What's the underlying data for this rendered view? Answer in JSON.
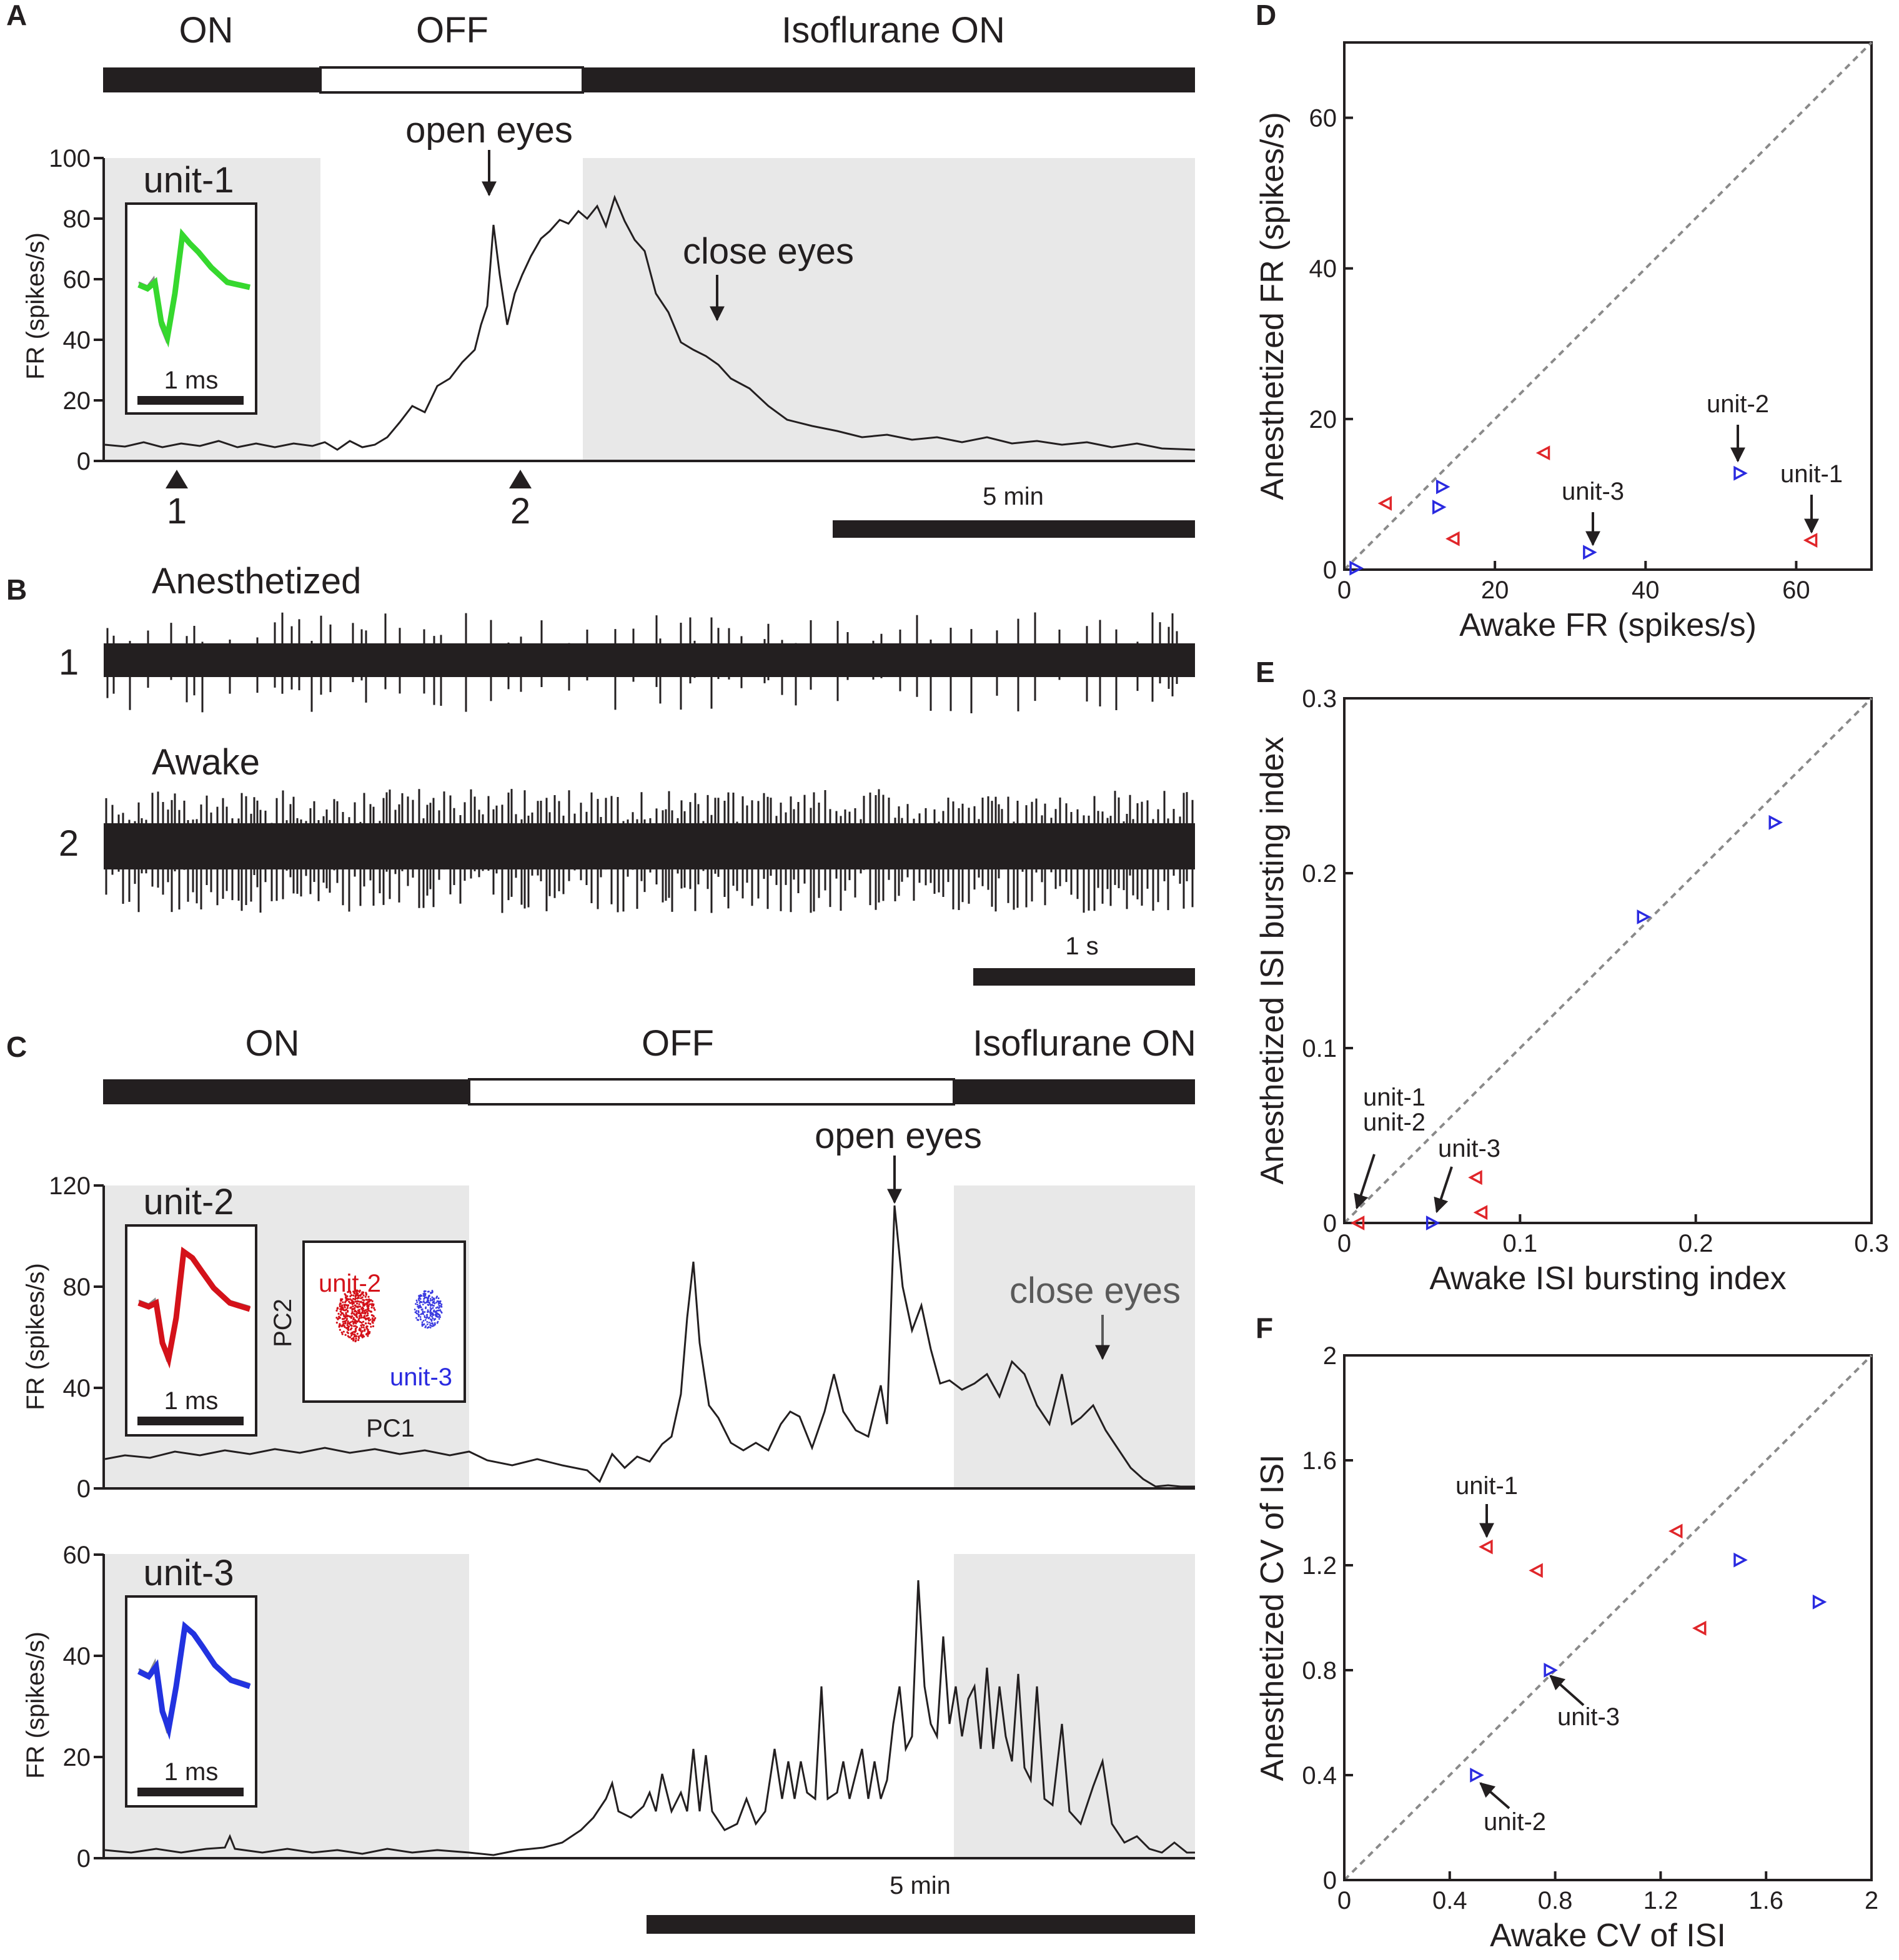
{
  "panels": {
    "A": {
      "letter": "A",
      "states": [
        "ON",
        "OFF",
        "Isoflurane ON"
      ],
      "ylabel": "FR (spikes/s)",
      "yticks": [
        "0",
        "20",
        "40",
        "60",
        "80",
        "100"
      ],
      "ylim": [
        0,
        100
      ],
      "annotations": {
        "open": "open eyes",
        "close": "close eyes"
      },
      "inset": {
        "unit": "unit-1",
        "scale": "1 ms",
        "color": "#36d82e"
      },
      "markers": [
        "1",
        "2"
      ],
      "scalebar": "5 min"
    },
    "B": {
      "letter": "B",
      "traces": [
        {
          "label": "Anesthetized",
          "index": "1"
        },
        {
          "label": "Awake",
          "index": "2"
        }
      ],
      "scalebar": "1 s"
    },
    "C": {
      "letter": "C",
      "states": [
        "ON",
        "OFF",
        "Isoflurane ON"
      ],
      "top": {
        "ylabel": "FR (spikes/s)",
        "yticks": [
          "0",
          "40",
          "80",
          "120"
        ],
        "ylim": [
          0,
          120
        ],
        "annotations": {
          "open": "open eyes",
          "close": "close eyes"
        },
        "inset": {
          "unit": "unit-2",
          "scale": "1 ms",
          "color": "#d4121a"
        },
        "pca": {
          "xlabel": "PC1",
          "ylabel": "PC2",
          "label_a": "unit-2",
          "label_b": "unit-3"
        }
      },
      "bottom": {
        "ylabel": "FR (spikes/s)",
        "yticks": [
          "0",
          "20",
          "40",
          "60"
        ],
        "ylim": [
          0,
          60
        ],
        "inset": {
          "unit": "unit-3",
          "scale": "1 ms",
          "color": "#2233e0"
        }
      },
      "scalebar": "5 min"
    }
  },
  "colors": {
    "red": "#e0262a",
    "blue": "#2a2ae0",
    "shade": "#e8e8e8",
    "ink": "#231f20"
  },
  "chart_data": [
    {
      "type": "scatter",
      "panel": "D",
      "xlabel": "Awake FR  (spikes/s)",
      "ylabel": "Anesthetized FR  (spikes/s)",
      "xlim": [
        0,
        70
      ],
      "ylim": [
        0,
        70
      ],
      "xticks": [
        "0",
        "20",
        "40",
        "60"
      ],
      "yticks": [
        "0",
        "20",
        "40",
        "60"
      ],
      "series": [
        {
          "name": "red",
          "marker": "left-triangle",
          "points": [
            [
              5.5,
              8.8
            ],
            [
              14.5,
              4.1
            ],
            [
              26.5,
              15.5
            ],
            [
              62,
              3.9
            ]
          ]
        },
        {
          "name": "blue",
          "marker": "right-triangle",
          "points": [
            [
              1.5,
              0.2
            ],
            [
              12.5,
              8.3
            ],
            [
              13.0,
              11.0
            ],
            [
              32.5,
              2.3
            ],
            [
              52.5,
              12.8
            ]
          ]
        }
      ],
      "annotations": [
        {
          "text": "unit-2",
          "x": 52.5,
          "y": 12.8
        },
        {
          "text": "unit-1",
          "x": 62,
          "y": 3.9
        },
        {
          "text": "unit-3",
          "x": 32.5,
          "y": 2.3
        }
      ]
    },
    {
      "type": "scatter",
      "panel": "E",
      "xlabel": "Awake ISI bursting index",
      "ylabel": "Anesthetized ISI bursting index",
      "xlim": [
        0,
        0.3
      ],
      "ylim": [
        0,
        0.3
      ],
      "xticks": [
        "0",
        "0.1",
        "0.2",
        "0.3"
      ],
      "yticks": [
        "0",
        "0.1",
        "0.2",
        "0.3"
      ],
      "series": [
        {
          "name": "red",
          "marker": "left-triangle",
          "points": [
            [
              0.008,
              0.0
            ],
            [
              0.075,
              0.026
            ],
            [
              0.078,
              0.006
            ]
          ]
        },
        {
          "name": "blue",
          "marker": "right-triangle",
          "points": [
            [
              0.05,
              0.0
            ],
            [
              0.17,
              0.175
            ],
            [
              0.245,
              0.229
            ]
          ]
        }
      ],
      "annotations": [
        {
          "text": "unit-1",
          "x": 0.008,
          "y": 0.0
        },
        {
          "text": "unit-2",
          "x": 0.008,
          "y": 0.0
        },
        {
          "text": "unit-3",
          "x": 0.05,
          "y": 0.0
        }
      ]
    },
    {
      "type": "scatter",
      "panel": "F",
      "xlabel": "Awake CV of ISI",
      "ylabel": "Anesthetized CV of ISI",
      "xlim": [
        0,
        2
      ],
      "ylim": [
        0,
        2
      ],
      "xticks": [
        "0",
        "0.4",
        "0.8",
        "1.2",
        "1.6",
        "2"
      ],
      "yticks": [
        "0",
        "0.4",
        "0.8",
        "1.2",
        "1.6",
        "2"
      ],
      "series": [
        {
          "name": "red",
          "marker": "left-triangle",
          "points": [
            [
              0.54,
              1.27
            ],
            [
              0.73,
              1.18
            ],
            [
              1.26,
              1.33
            ],
            [
              1.35,
              0.96
            ]
          ]
        },
        {
          "name": "blue",
          "marker": "right-triangle",
          "points": [
            [
              0.5,
              0.4
            ],
            [
              0.78,
              0.8
            ],
            [
              1.5,
              1.22
            ],
            [
              1.8,
              1.06
            ]
          ]
        }
      ],
      "annotations": [
        {
          "text": "unit-1",
          "x": 0.54,
          "y": 1.27
        },
        {
          "text": "unit-3",
          "x": 0.78,
          "y": 0.8
        },
        {
          "text": "unit-2",
          "x": 0.5,
          "y": 0.4
        }
      ]
    }
  ]
}
